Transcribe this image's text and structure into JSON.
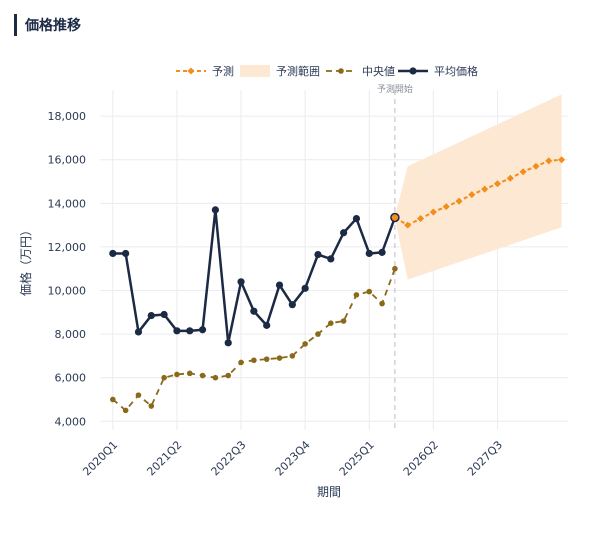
{
  "page": {
    "title": "価格推移"
  },
  "chart_data": {
    "type": "line",
    "xlabel": "期間",
    "ylabel": "価格（万円）",
    "ylim": [
      3600,
      19200
    ],
    "yticks": [
      4000,
      6000,
      8000,
      10000,
      12000,
      14000,
      16000,
      18000
    ],
    "ytick_labels": [
      "4,000",
      "6,000",
      "8,000",
      "10,000",
      "12,000",
      "14,000",
      "16,000",
      "18,000"
    ],
    "x_ticks": [
      "2020Q1",
      "2021Q2",
      "2022Q3",
      "2023Q4",
      "2025Q1",
      "2026Q2",
      "2027Q3"
    ],
    "x_tick_index": [
      0,
      5,
      10,
      15,
      20,
      25,
      30
    ],
    "x_range": [
      -1,
      35.5
    ],
    "forecast_start_label": "予測開始",
    "forecast_start_index": 22,
    "series": [
      {
        "name": "平均価格",
        "color": "#1c2a44",
        "x": [
          0,
          1,
          2,
          3,
          4,
          5,
          6,
          7,
          8,
          9,
          10,
          11,
          12,
          13,
          14,
          15,
          16,
          17,
          18,
          19,
          20,
          21,
          22
        ],
        "values": [
          11700,
          11700,
          8100,
          8850,
          8900,
          8150,
          8150,
          8200,
          13700,
          7600,
          10400,
          9050,
          8400,
          10250,
          9350,
          10100,
          11650,
          11450,
          12650,
          13300,
          11700,
          11750,
          13350
        ]
      },
      {
        "name": "中央値",
        "color": "#8a6a1a",
        "x": [
          0,
          1,
          2,
          3,
          4,
          5,
          6,
          7,
          8,
          9,
          10,
          11,
          12,
          13,
          14,
          15,
          16,
          17,
          18,
          19,
          20,
          21,
          22
        ],
        "values": [
          5000,
          4500,
          5200,
          4700,
          6000,
          6150,
          6200,
          6100,
          6000,
          6100,
          6700,
          6800,
          6850,
          6900,
          7000,
          7550,
          8000,
          8500,
          8600,
          9800,
          9950,
          9400,
          11000
        ]
      },
      {
        "name": "予測",
        "color": "#f28e1c",
        "x": [
          22,
          23,
          24,
          25,
          26,
          27,
          28,
          29,
          30,
          31,
          32,
          33,
          34,
          35
        ],
        "values": [
          13350,
          13000,
          13300,
          13600,
          13850,
          14100,
          14400,
          14650,
          14900,
          15150,
          15450,
          15700,
          15950,
          16000
        ]
      }
    ],
    "band": {
      "name": "予測範囲",
      "color": "#fde9d3",
      "x": [
        22,
        23,
        35
      ],
      "upper": [
        13400,
        15700,
        19000
      ],
      "lower": [
        13300,
        10500,
        12900
      ]
    },
    "legend": [
      "予測",
      "予測範囲",
      "中央値",
      "平均価格"
    ],
    "legend_position": "top"
  }
}
